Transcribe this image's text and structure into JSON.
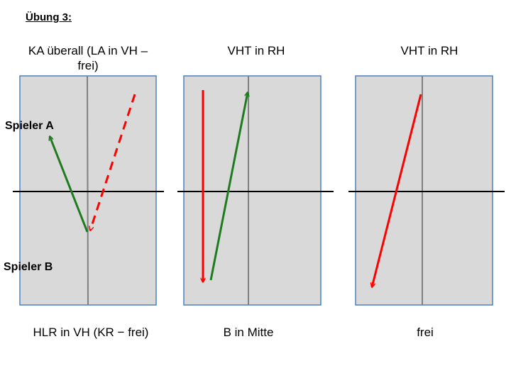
{
  "slide": {
    "title": "Übung 3:"
  },
  "player_labels": {
    "a": "Spieler A",
    "b": "Spieler B"
  },
  "panels": [
    {
      "heading": "KA überall (LA in VH – frei)",
      "caption": "HLR in VH (KR − frei)"
    },
    {
      "heading": "VHT in RH",
      "caption": "B in Mitte"
    },
    {
      "heading": "VHT in RH",
      "caption": "frei"
    }
  ],
  "colors": {
    "court_fill": "#d9d9d9",
    "court_border": "#4f81bd",
    "center_line": "#808080",
    "net": "#000000",
    "green_arrow": "#1e7b1e",
    "red_arrow": "#ff0000"
  }
}
